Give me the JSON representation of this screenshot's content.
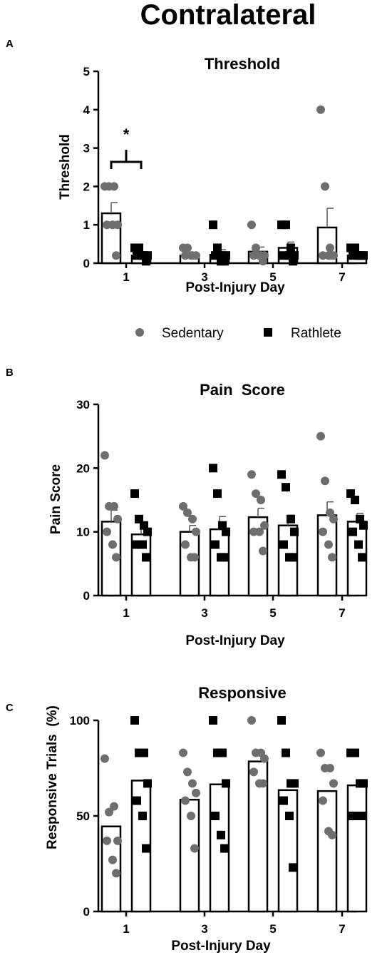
{
  "figure_title": "Contralateral",
  "legend": [
    {
      "name": "Sedentary",
      "marker": "circle",
      "color": "#6e6e6e"
    },
    {
      "name": "Rathlete",
      "marker": "square",
      "color": "#000000"
    }
  ],
  "chart_data": [
    {
      "panel": "A",
      "type": "bar",
      "title": "Threshold",
      "xlabel": "Post-Injury Day",
      "ylabel": "Threshold",
      "categories": [
        "1",
        "3",
        "5",
        "7"
      ],
      "ylim": [
        0,
        5
      ],
      "yticks": [
        0,
        1,
        2,
        3,
        4,
        5
      ],
      "error_bars": true,
      "significance": {
        "category": "1",
        "label": "*"
      },
      "series": [
        {
          "name": "Sedentary",
          "marker": "circle",
          "color": "#6e6e6e",
          "means": [
            1.3,
            0.2,
            0.3,
            0.93
          ],
          "sem": [
            0.28,
            0.06,
            0.12,
            0.5
          ],
          "points": [
            [
              2,
              2,
              2,
              1,
              1,
              1,
              0.2
            ],
            [
              0.4,
              0.4,
              0.2,
              0.2,
              0.2,
              0.2
            ],
            [
              1,
              0.4,
              0.2,
              0.2,
              0.2,
              0.2,
              0.05
            ],
            [
              4,
              2,
              0.4,
              0.2,
              0.2,
              0.2,
              0.2
            ]
          ]
        },
        {
          "name": "Rathlete",
          "marker": "square",
          "color": "#000000",
          "means": [
            0.2,
            0.22,
            0.4,
            0.2
          ],
          "sem": [
            0.05,
            0.13,
            0.15,
            0.04
          ],
          "points": [
            [
              0.4,
              0.4,
              0.2,
              0.2,
              0.2,
              0.2,
              0.05
            ],
            [
              1,
              0.4,
              0.2,
              0.2,
              0.2,
              0.05,
              0.05
            ],
            [
              1,
              1,
              0.4,
              0.2,
              0.2,
              0.2,
              0.05
            ],
            [
              0.4,
              0.4,
              0.2,
              0.2,
              0.2,
              0.2,
              0.2
            ]
          ]
        }
      ]
    },
    {
      "panel": "B",
      "type": "bar",
      "title": "Pain  Score",
      "xlabel": "Post-Injury Day",
      "ylabel": "Pain Score",
      "categories": [
        "1",
        "3",
        "5",
        "7"
      ],
      "ylim": [
        0,
        30
      ],
      "yticks": [
        0,
        10,
        20,
        30
      ],
      "error_bars": true,
      "series": [
        {
          "name": "Sedentary",
          "marker": "circle",
          "color": "#6e6e6e",
          "means": [
            11.6,
            10,
            12.3,
            12.6
          ],
          "sem": [
            1.8,
            1.0,
            1.4,
            2.1
          ],
          "points": [
            [
              22,
              14,
              14,
              12,
              10,
              8,
              6
            ],
            [
              14,
              13,
              12,
              10,
              8,
              6,
              6
            ],
            [
              19,
              16,
              15,
              11,
              10,
              10,
              7
            ],
            [
              25,
              18,
              13,
              12,
              10,
              8,
              6
            ]
          ]
        },
        {
          "name": "Rathlete",
          "marker": "square",
          "color": "#000000",
          "means": [
            9.6,
            10.4,
            11,
            11.6
          ],
          "sem": [
            1.2,
            2.0,
            1.6,
            1.3
          ],
          "points": [
            [
              16,
              12,
              11,
              10,
              8,
              8,
              6
            ],
            [
              20,
              16,
              11,
              10,
              8,
              6,
              6
            ],
            [
              19,
              17,
              12,
              10,
              8,
              6,
              6
            ],
            [
              16,
              15,
              12,
              11,
              10,
              8,
              6
            ]
          ]
        }
      ]
    },
    {
      "panel": "C",
      "type": "bar",
      "title": "Responsive",
      "xlabel": "Post-Injury Day",
      "ylabel": "Responsive Trials  (%)",
      "categories": [
        "1",
        "3",
        "5",
        "7"
      ],
      "ylim": [
        0,
        100
      ],
      "yticks": [
        0,
        50,
        100
      ],
      "error_bars": false,
      "series": [
        {
          "name": "Sedentary",
          "marker": "circle",
          "color": "#6e6e6e",
          "means": [
            44.5,
            58.5,
            78.5,
            63
          ],
          "sem": [
            0,
            0,
            0,
            0
          ],
          "points": [
            [
              80,
              52,
              55,
              37,
              37,
              27,
              20
            ],
            [
              83,
              73,
              67,
              62,
              58,
              50,
              33
            ],
            [
              100,
              83,
              83,
              80,
              73,
              67,
              67
            ],
            [
              83,
              75,
              75,
              67,
              58,
              42,
              40
            ]
          ]
        },
        {
          "name": "Rathlete",
          "marker": "square",
          "color": "#000000",
          "means": [
            68.5,
            66.5,
            63.5,
            66
          ],
          "sem": [
            0,
            0,
            0,
            0
          ],
          "points": [
            [
              100,
              83,
              83,
              67,
              58,
              50,
              33
            ],
            [
              100,
              83,
              83,
              67,
              50,
              40,
              33
            ],
            [
              100,
              83,
              67,
              67,
              58,
              50,
              23
            ],
            [
              83,
              83,
              67,
              67,
              50,
              50,
              50
            ]
          ]
        }
      ]
    }
  ]
}
